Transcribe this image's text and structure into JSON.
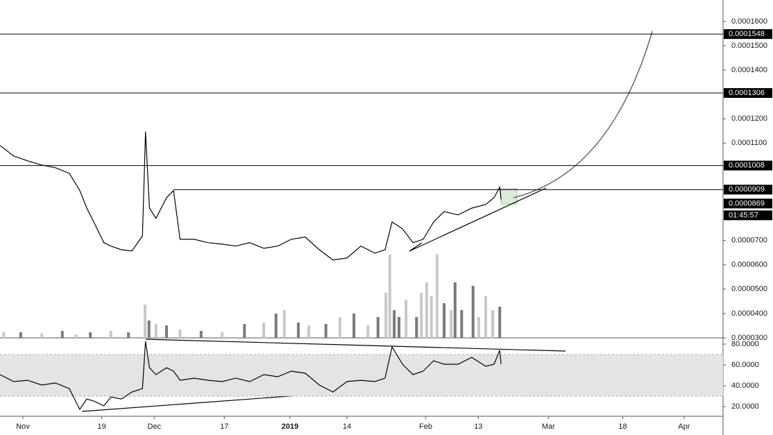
{
  "chart_data": [
    {
      "type": "line",
      "color": "#000000",
      "xlim": [
        -5.23,
        159.9
      ],
      "xticks": [
        {
          "value": 0,
          "label": "Nov"
        },
        {
          "value": 18,
          "label": "19"
        },
        {
          "value": 30,
          "label": "Dec"
        },
        {
          "value": 46,
          "label": "17"
        },
        {
          "value": 61,
          "label": "2019"
        },
        {
          "value": 74,
          "label": "14"
        },
        {
          "value": 92,
          "label": "Feb"
        },
        {
          "value": 104,
          "label": "13"
        },
        {
          "value": 120,
          "label": "Mar"
        },
        {
          "value": 137,
          "label": "18"
        },
        {
          "value": 151,
          "label": "Apr"
        }
      ],
      "ylim": [
        3e-05,
        0.0001688
      ],
      "yticks": [
        {
          "value": 3e-05,
          "label": "0.0000300"
        },
        {
          "value": 4e-05,
          "label": "0.0000400"
        },
        {
          "value": 5e-05,
          "label": "0.0000500"
        },
        {
          "value": 6e-05,
          "label": "0.0000600"
        },
        {
          "value": 7e-05,
          "label": "0.0000700"
        },
        {
          "value": 0.00011,
          "label": "0.0001100"
        },
        {
          "value": 0.00012,
          "label": "0.0001200"
        },
        {
          "value": 0.00014,
          "label": "0.0001400"
        },
        {
          "value": 0.00015,
          "label": "0.0001500"
        },
        {
          "value": 0.00016,
          "label": "0.0001600"
        }
      ],
      "x": [
        -5.2,
        -2.1,
        1.1,
        4.3,
        7.4,
        10.6,
        13,
        14.6,
        16.2,
        18.5,
        20.1,
        22.5,
        24.9,
        27.3,
        28,
        28.9,
        30.4,
        32.8,
        34.4,
        35.9,
        39.1,
        42.3,
        45.5,
        48.6,
        51.8,
        55,
        58.2,
        61.3,
        64.5,
        67.7,
        70.8,
        74,
        77.2,
        80.4,
        82.7,
        84.3,
        86.7,
        89.1,
        91.4,
        93.8,
        96.2,
        99.4,
        102.5,
        105.7,
        107.6,
        108.9,
        109.2
      ],
      "values": [
        0.000109,
        0.0001047,
        0.0001027,
        0.000101,
        9.99e-05,
        9.76e-05,
        9.05e-05,
        8.33e-05,
        7.76e-05,
        6.91e-05,
        6.77e-05,
        6.62e-05,
        6.57e-05,
        7.19e-05,
        0.0001147,
        8.33e-05,
        7.91e-05,
        8.76e-05,
        9.05e-05,
        7.05e-05,
        7.05e-05,
        6.91e-05,
        6.85e-05,
        6.77e-05,
        6.91e-05,
        6.68e-05,
        6.77e-05,
        7.05e-05,
        7.14e-05,
        6.62e-05,
        6.2e-05,
        6.28e-05,
        6.77e-05,
        6.48e-05,
        6.62e-05,
        7.76e-05,
        7.48e-05,
        6.91e-05,
        7.05e-05,
        7.76e-05,
        8.19e-05,
        8.05e-05,
        8.33e-05,
        8.48e-05,
        8.76e-05,
        9.19e-05,
        8.69e-05
      ],
      "levels": [
        0.0001548,
        0.0001306,
        0.0001008,
        9.09e-05
      ],
      "last_price": 8.69e-05,
      "countdown": "01:45:57",
      "volume": {
        "ylim": [
          0,
          120
        ],
        "x": [
          -4.4,
          -0.5,
          4.3,
          9,
          12.2,
          15.4,
          20.1,
          24.1,
          27.9,
          28.8,
          30.4,
          32.8,
          35.9,
          40.7,
          45.5,
          50.6,
          55,
          57.8,
          59.7,
          62.9,
          65.3,
          69.2,
          72.4,
          75.6,
          78.8,
          81.1,
          82.9,
          83.8,
          84.8,
          85.9,
          87.5,
          89.9,
          91,
          92.2,
          93.3,
          94.6,
          96.2,
          97.8,
          98.7,
          100.2,
          102.8,
          104.1,
          105.7,
          107.3,
          108.9
        ],
        "values": [
          8,
          8,
          6,
          10,
          5,
          8,
          10,
          8,
          48,
          25,
          20,
          18,
          12,
          10,
          8,
          20,
          22,
          35,
          40,
          22,
          18,
          20,
          30,
          35,
          18,
          30,
          65,
          120,
          40,
          30,
          55,
          30,
          65,
          80,
          60,
          120,
          50,
          40,
          80,
          40,
          75,
          30,
          60,
          40,
          45
        ],
        "colors": [
          "#c8c8c8",
          "#7a7a7a",
          "#c8c8c8",
          "#7a7a7a",
          "#c8c8c8",
          "#7a7a7a",
          "#c8c8c8",
          "#7a7a7a",
          "#c8c8c8",
          "#7a7a7a",
          "#c8c8c8",
          "#7a7a7a",
          "#c8c8c8",
          "#7a7a7a",
          "#c8c8c8",
          "#7a7a7a",
          "#c8c8c8",
          "#7a7a7a",
          "#c8c8c8",
          "#7a7a7a",
          "#c8c8c8",
          "#7a7a7a",
          "#c8c8c8",
          "#7a7a7a",
          "#c8c8c8",
          "#7a7a7a",
          "#c8c8c8",
          "#c8c8c8",
          "#7a7a7a",
          "#7a7a7a",
          "#c8c8c8",
          "#7a7a7a",
          "#c8c8c8",
          "#c8c8c8",
          "#c8c8c8",
          "#c8c8c8",
          "#7a7a7a",
          "#c8c8c8",
          "#7a7a7a",
          "#7a7a7a",
          "#7a7a7a",
          "#c8c8c8",
          "#c8c8c8",
          "#c8c8c8",
          "#7a7a7a"
        ]
      }
    },
    {
      "type": "line",
      "color": "#000000",
      "ylim": [
        10.7,
        86
      ],
      "yticks": [
        {
          "value": 80,
          "label": "80.0000"
        },
        {
          "value": 60,
          "label": "60.0000"
        },
        {
          "value": 40,
          "label": "40.0000"
        },
        {
          "value": 20,
          "label": "20.0000"
        }
      ],
      "band": [
        30,
        70
      ],
      "x": [
        -5.2,
        -2.1,
        1.1,
        4.3,
        7.4,
        10.6,
        13,
        14.6,
        16.2,
        18.5,
        20.1,
        22.5,
        24.9,
        27.3,
        28,
        28.9,
        30.4,
        32.8,
        34.4,
        35.9,
        39.1,
        42.3,
        45.5,
        48.6,
        51.8,
        55,
        58.2,
        61.3,
        64.5,
        67.7,
        70.8,
        74,
        77.2,
        80.4,
        82.7,
        84.3,
        86.7,
        89.1,
        91.4,
        93.8,
        96.2,
        99.4,
        102.5,
        105.7,
        107.6,
        108.9,
        109.2
      ],
      "values": [
        50.7,
        44,
        45.3,
        40.7,
        42.7,
        37.3,
        17.3,
        27.3,
        25.3,
        20.7,
        29.3,
        27.3,
        34,
        37.3,
        82.7,
        57.3,
        50.7,
        57.3,
        54,
        45.3,
        47.3,
        45.3,
        44,
        47.3,
        44,
        50.7,
        48.7,
        54,
        52,
        40.7,
        34,
        44,
        45.3,
        44,
        47.3,
        77.3,
        60.7,
        50.7,
        54,
        64,
        60.7,
        60.7,
        67.3,
        58.7,
        60.7,
        74,
        60.7
      ]
    }
  ]
}
